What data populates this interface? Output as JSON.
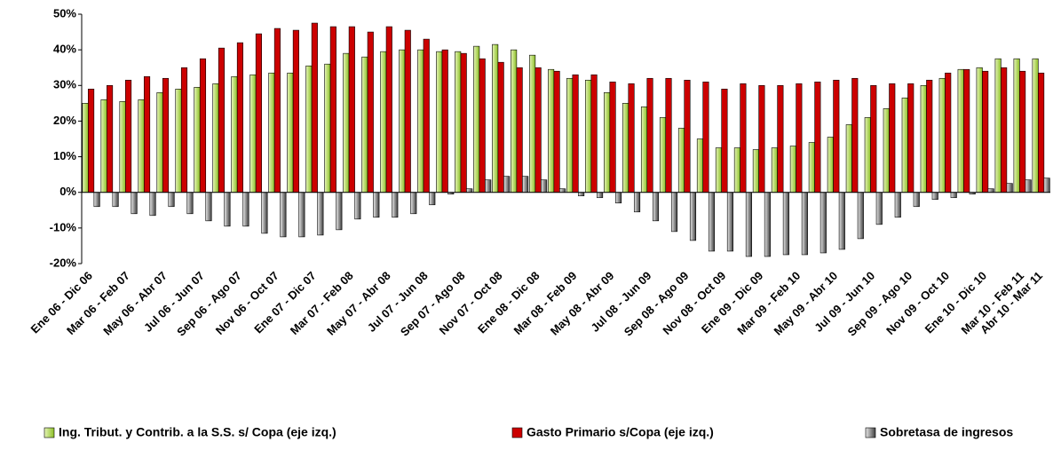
{
  "chart_data": {
    "type": "bar",
    "categories": [
      "Ene 06 - Dic 06",
      null,
      "Mar 06 - Feb 07",
      null,
      "May 06 - Abr 07",
      null,
      "Jul 06 - Jun 07",
      null,
      "Sep 06 - Ago 07",
      null,
      "Nov 06 - Oct 07",
      null,
      "Ene 07 - Dic 07",
      null,
      "Mar 07 - Feb 08",
      null,
      "May 07 - Abr 08",
      null,
      "Jul 07 - Jun 08",
      null,
      "Sep 07 - Ago 08",
      null,
      "Nov 07 - Oct 08",
      null,
      "Ene 08 - Dic 08",
      null,
      "Mar 08 - Feb 09",
      null,
      "May 08 - Abr 09",
      null,
      "Jul 08 - Jun 09",
      null,
      "Sep 08 - Ago 09",
      null,
      "Nov 08 - Oct 09",
      null,
      "Ene 09 - Dic 09",
      null,
      "Mar 09 - Feb 10",
      null,
      "May 09 - Abr 10",
      null,
      "Jul 09 - Jun 10",
      null,
      "Sep 09 - Ago 10",
      null,
      "Nov 09 - Oct 10",
      null,
      "Ene 10 - Dic 10",
      null,
      "Mar 10 - Feb 11",
      "Abr 10 - Mar 11"
    ],
    "series": [
      {
        "name": "Ing. Tribut. y Contrib. a la S.S. s/ Copa (eje izq.)",
        "color": "#99cc33",
        "values": [
          25,
          26,
          25.5,
          26,
          28,
          29,
          29.5,
          30.5,
          32.5,
          33,
          33.5,
          33.5,
          35.5,
          36,
          39,
          38,
          39.5,
          40,
          40,
          39.5,
          39.5,
          41,
          41.5,
          40,
          38.5,
          34.5,
          32,
          31.5,
          28,
          25,
          24,
          21,
          18,
          15,
          12.5,
          12.5,
          12,
          12.5,
          13,
          14,
          15.5,
          19,
          21,
          23.5,
          26.5,
          30,
          32,
          34.5,
          35,
          37.5,
          37.5,
          37.5
        ]
      },
      {
        "name": "Gasto Primario s/Copa (eje izq.)",
        "color": "#cc0000",
        "values": [
          29,
          30,
          31.5,
          32.5,
          32,
          35,
          37.5,
          40.5,
          42,
          44.5,
          46,
          45.5,
          47.5,
          46.5,
          46.5,
          45,
          46.5,
          45.5,
          43,
          40,
          39,
          37.5,
          36.5,
          35,
          35,
          34,
          33,
          33,
          31,
          30.5,
          32,
          32,
          31.5,
          31,
          29,
          30.5,
          30,
          30,
          30.5,
          31,
          31.5,
          32,
          30,
          30.5,
          30.5,
          31.5,
          33.5,
          34.5,
          34,
          35,
          34,
          33.5
        ]
      },
      {
        "name": "Sobretasa de ingresos",
        "color": "#808080",
        "values": [
          -4,
          -4,
          -6,
          -6.5,
          -4,
          -6,
          -8,
          -9.5,
          -9.5,
          -11.5,
          -12.5,
          -12.5,
          -12,
          -10.5,
          -7.5,
          -7,
          -7,
          -6,
          -3.5,
          -0.5,
          1,
          3.5,
          4.5,
          4.5,
          3.5,
          1,
          -1,
          -1.5,
          -3,
          -5.5,
          -8,
          -11,
          -13.5,
          -16.5,
          -16.5,
          -18,
          -18,
          -17.5,
          -17.5,
          -17,
          -16,
          -13,
          -9,
          -7,
          -4,
          -2,
          -1.5,
          -0.5,
          1,
          2.5,
          3.5,
          4
        ]
      }
    ],
    "ylim": [
      -20,
      50
    ],
    "yticks": [
      {
        "value": -20,
        "label": "-20%"
      },
      {
        "value": -10,
        "label": "-10%"
      },
      {
        "value": 0,
        "label": "0%"
      },
      {
        "value": 10,
        "label": "10%"
      },
      {
        "value": 20,
        "label": "20%"
      },
      {
        "value": 30,
        "label": "30%"
      },
      {
        "value": 40,
        "label": "40%"
      },
      {
        "value": 50,
        "label": "50%"
      }
    ],
    "grid": false
  }
}
